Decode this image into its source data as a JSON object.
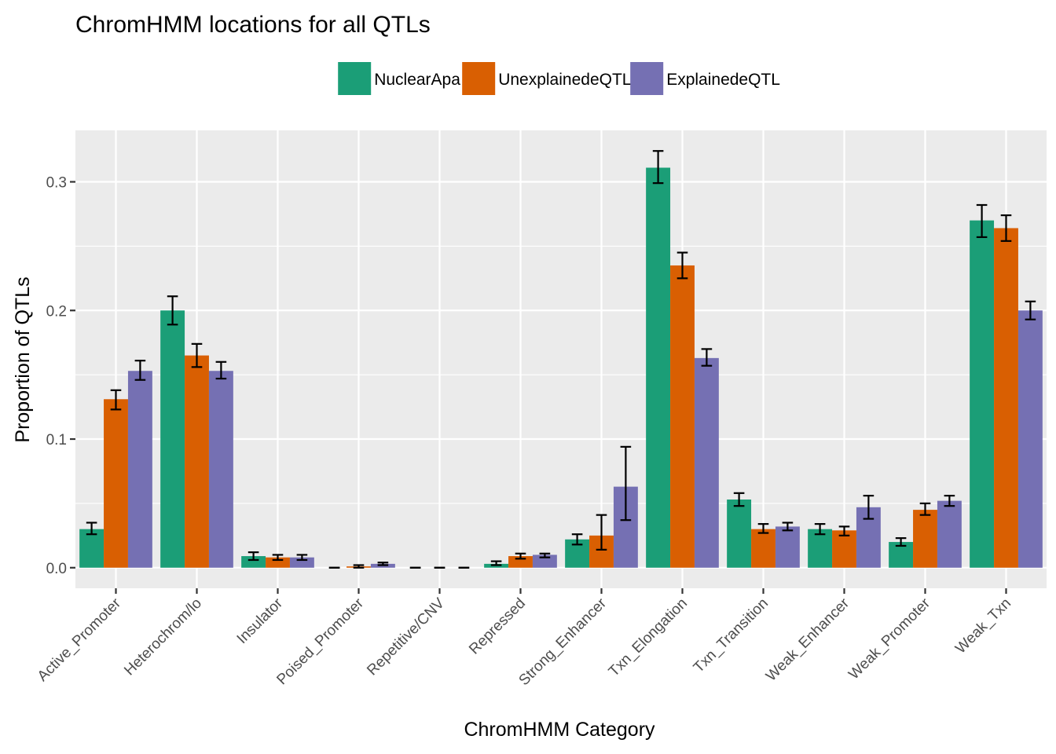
{
  "chart_data": {
    "type": "bar",
    "title": "ChromHMM locations for all QTLs",
    "xlabel": "ChromHMM Category",
    "ylabel": "Proportion of QTLs",
    "ylim": [
      -0.016,
      0.34
    ],
    "yticks": [
      0.0,
      0.1,
      0.2,
      0.3
    ],
    "ytick_labels": [
      "0.0",
      "0.1",
      "0.2",
      "0.3"
    ],
    "grid": true,
    "legend_position": "top",
    "categories": [
      "Active_Promoter",
      "Heterochrom/lo",
      "Insulator",
      "Poised_Promoter",
      "Repetitive/CNV",
      "Repressed",
      "Strong_Enhancer",
      "Txn_Elongation",
      "Txn_Transition",
      "Weak_Enhancer",
      "Weak_Promoter",
      "Weak_Txn"
    ],
    "series": [
      {
        "name": "NuclearApa",
        "color": "#1b9e77",
        "values": [
          0.03,
          0.2,
          0.009,
          0.0,
          0.0,
          0.003,
          0.022,
          0.311,
          0.053,
          0.03,
          0.02,
          0.27
        ],
        "err_low": [
          0.026,
          0.189,
          0.006,
          0.0,
          0.0,
          0.002,
          0.018,
          0.299,
          0.048,
          0.026,
          0.017,
          0.257
        ],
        "err_high": [
          0.035,
          0.211,
          0.012,
          0.0,
          0.0,
          0.005,
          0.026,
          0.324,
          0.058,
          0.034,
          0.023,
          0.282
        ]
      },
      {
        "name": "UnexplainedeQTL",
        "color": "#d95f02",
        "values": [
          0.131,
          0.165,
          0.008,
          0.001,
          0.0,
          0.009,
          0.025,
          0.235,
          0.03,
          0.029,
          0.045,
          0.264
        ],
        "err_low": [
          0.123,
          0.156,
          0.006,
          0.0,
          0.0,
          0.007,
          0.014,
          0.225,
          0.027,
          0.025,
          0.041,
          0.254
        ],
        "err_high": [
          0.138,
          0.174,
          0.01,
          0.002,
          0.0,
          0.011,
          0.041,
          0.245,
          0.034,
          0.032,
          0.05,
          0.274
        ]
      },
      {
        "name": "ExplainedeQTL",
        "color": "#7570b3",
        "values": [
          0.153,
          0.153,
          0.008,
          0.003,
          0.0,
          0.01,
          0.063,
          0.163,
          0.032,
          0.047,
          0.052,
          0.2
        ],
        "err_low": [
          0.146,
          0.147,
          0.006,
          0.002,
          0.0,
          0.008,
          0.037,
          0.157,
          0.029,
          0.038,
          0.048,
          0.193
        ],
        "err_high": [
          0.161,
          0.16,
          0.01,
          0.004,
          0.0,
          0.011,
          0.094,
          0.17,
          0.035,
          0.056,
          0.056,
          0.207
        ]
      }
    ]
  }
}
